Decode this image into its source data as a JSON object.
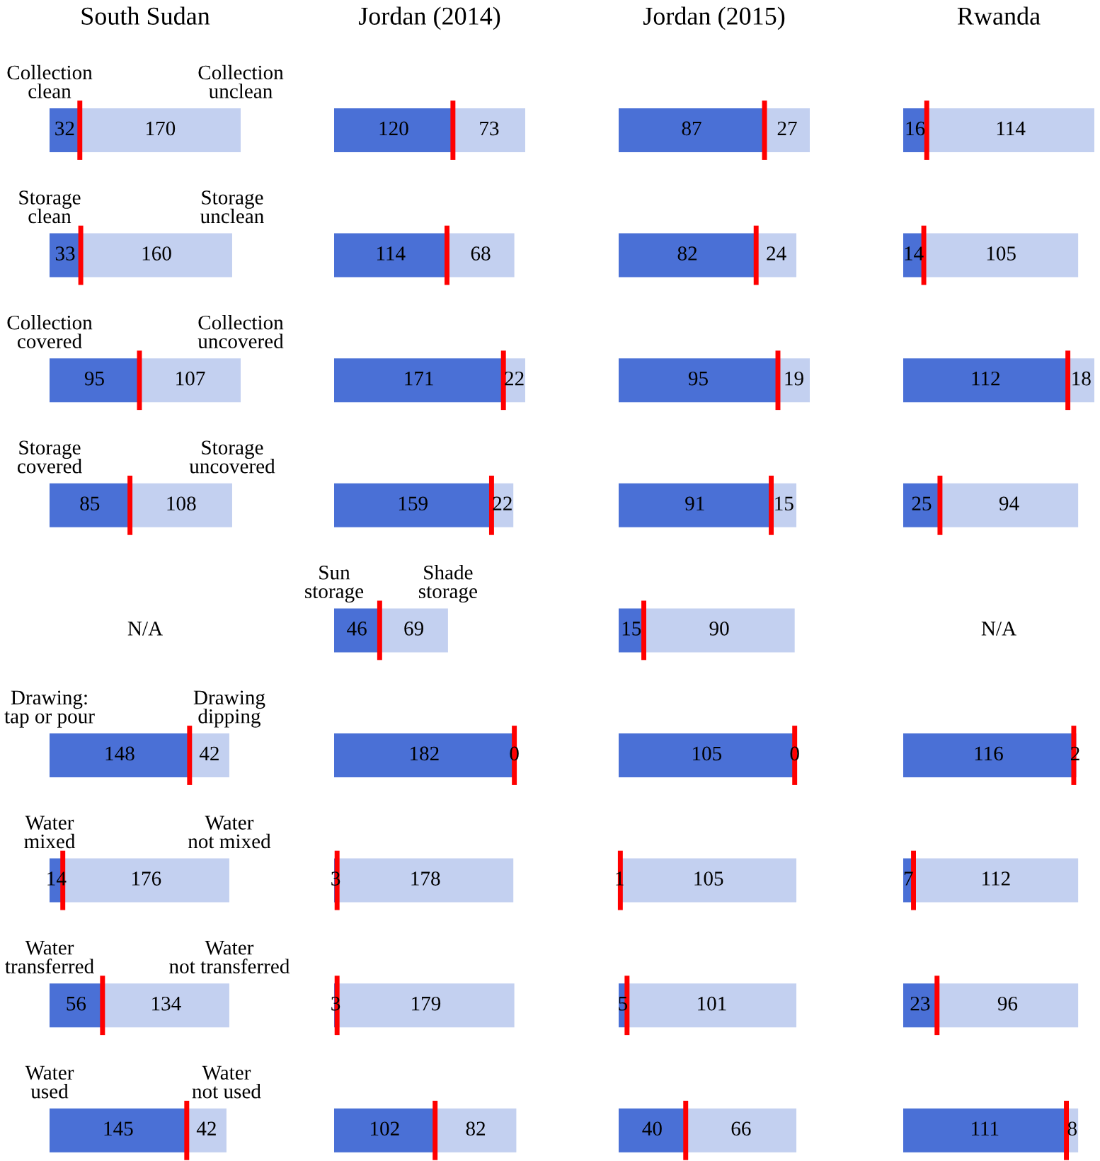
{
  "chart_data": [
    {
      "type": "bar",
      "title": "South Sudan",
      "orientation": "horizontal",
      "stacked": true,
      "categories": [
        null,
        null,
        null,
        null,
        null,
        null,
        null,
        null,
        null
      ],
      "data_labels": true,
      "series": [
        {
          "color": "#4a70d6",
          "values": [
            32,
            33,
            95,
            85,
            null,
            148,
            14,
            56,
            145
          ]
        },
        {
          "color": "#c3d0f0",
          "values": [
            170,
            160,
            107,
            108,
            null,
            42,
            176,
            134,
            42
          ]
        }
      ],
      "annotations": [
        "Collection\nclean",
        "Collection\nunclean",
        "Storage\nclean",
        "Storage\nunclean",
        "Collection\ncovered",
        "Collection\nuncovered",
        "Storage\ncovered",
        "Storage\nuncovered",
        "Drawing:\ntap or pour",
        "Drawing\ndipping",
        "Water\nmixed",
        "Water\nnot mixed",
        "Water\ntransferred",
        "Water\nnot transferred",
        "Water\nused",
        "Water\nnot used",
        "N/A"
      ]
    },
    {
      "type": "bar",
      "title": "Jordan (2014)",
      "orientation": "horizontal",
      "stacked": true,
      "categories": [
        null,
        null,
        null,
        null,
        null,
        null,
        null,
        null,
        null
      ],
      "data_labels": true,
      "series": [
        {
          "color": "#4a70d6",
          "values": [
            120,
            114,
            171,
            159,
            46,
            182,
            3,
            3,
            102
          ]
        },
        {
          "color": "#c3d0f0",
          "values": [
            73,
            68,
            22,
            22,
            69,
            0,
            178,
            179,
            82
          ]
        }
      ],
      "annotations": [
        "Sun\nstorage",
        "Shade\nstorage"
      ]
    },
    {
      "type": "bar",
      "title": "Jordan (2015)",
      "orientation": "horizontal",
      "stacked": true,
      "categories": [
        null,
        null,
        null,
        null,
        null,
        null,
        null,
        null,
        null
      ],
      "data_labels": true,
      "series": [
        {
          "color": "#4a70d6",
          "values": [
            87,
            82,
            95,
            91,
            15,
            105,
            1,
            5,
            40
          ]
        },
        {
          "color": "#c3d0f0",
          "values": [
            27,
            24,
            19,
            15,
            90,
            0,
            105,
            101,
            66
          ]
        }
      ]
    },
    {
      "type": "bar",
      "title": "Rwanda",
      "orientation": "horizontal",
      "stacked": true,
      "categories": [
        null,
        null,
        null,
        null,
        null,
        null,
        null,
        null,
        null
      ],
      "data_labels": true,
      "series": [
        {
          "color": "#4a70d6",
          "values": [
            16,
            14,
            112,
            25,
            null,
            116,
            7,
            23,
            111
          ]
        },
        {
          "color": "#c3d0f0",
          "values": [
            114,
            105,
            18,
            94,
            null,
            2,
            112,
            96,
            8
          ]
        }
      ],
      "annotations": [
        "N/A"
      ]
    }
  ]
}
